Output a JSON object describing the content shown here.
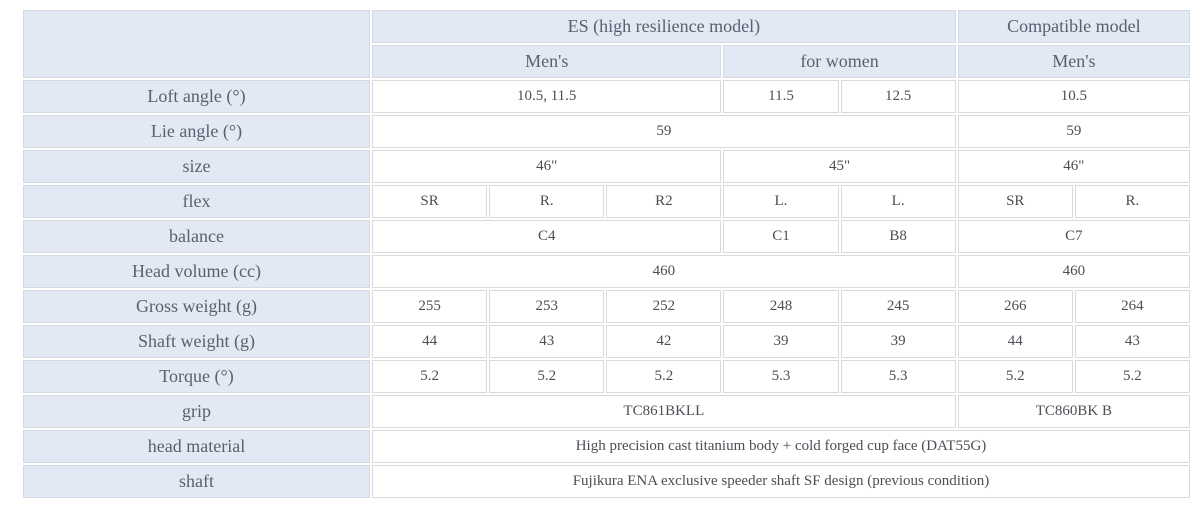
{
  "colors": {
    "header_cell_bg": "#e2e9f5",
    "value_cell_bg": "#ffffff",
    "grid_border": "#dadada",
    "header_text": "#59616e",
    "value_text": "#4b4f55"
  },
  "header": {
    "es_group_label": "ES (high resilience model)",
    "compatible_group_label": "Compatible model",
    "es_mens_label": "Men's",
    "for_women_label": "for women",
    "compatible_mens_label": "Men's"
  },
  "rows": {
    "loft_angle": {
      "label": "Loft angle (°)",
      "es_mens": "10.5, 11.5",
      "women_1": "11.5",
      "women_2": "12.5",
      "compatible": "10.5"
    },
    "lie_angle": {
      "label": "Lie angle (°)",
      "es": "59",
      "compatible": "59"
    },
    "size": {
      "label": "size",
      "es_mens": "46\"",
      "women": "45\"",
      "compatible": "46\""
    },
    "flex": {
      "label": "flex",
      "c1": "SR",
      "c2": "R.",
      "c3": "R2",
      "c4": "L.",
      "c5": "L.",
      "c6": "SR",
      "c7": "R."
    },
    "balance": {
      "label": "balance",
      "es_mens": "C4",
      "women_1": "C1",
      "women_2": "B8",
      "compatible": "C7"
    },
    "head_volume": {
      "label": "Head volume (cc)",
      "es": "460",
      "compatible": "460"
    },
    "gross_weight": {
      "label": "Gross weight (g)",
      "c1": "255",
      "c2": "253",
      "c3": "252",
      "c4": "248",
      "c5": "245",
      "c6": "266",
      "c7": "264"
    },
    "shaft_weight": {
      "label": "Shaft weight (g)",
      "c1": "44",
      "c2": "43",
      "c3": "42",
      "c4": "39",
      "c5": "39",
      "c6": "44",
      "c7": "43"
    },
    "torque": {
      "label": "Torque (°)",
      "c1": "5.2",
      "c2": "5.2",
      "c3": "5.2",
      "c4": "5.3",
      "c5": "5.3",
      "c6": "5.2",
      "c7": "5.2"
    },
    "grip": {
      "label": "grip",
      "es": "TC861BKLL",
      "compatible": "TC860BK B"
    },
    "head_material": {
      "label": "head material",
      "value": "High precision cast titanium body + cold forged cup face (DAT55G)"
    },
    "shaft": {
      "label": "shaft",
      "value": "Fujikura ENA exclusive speeder shaft SF design (previous condition)"
    }
  }
}
